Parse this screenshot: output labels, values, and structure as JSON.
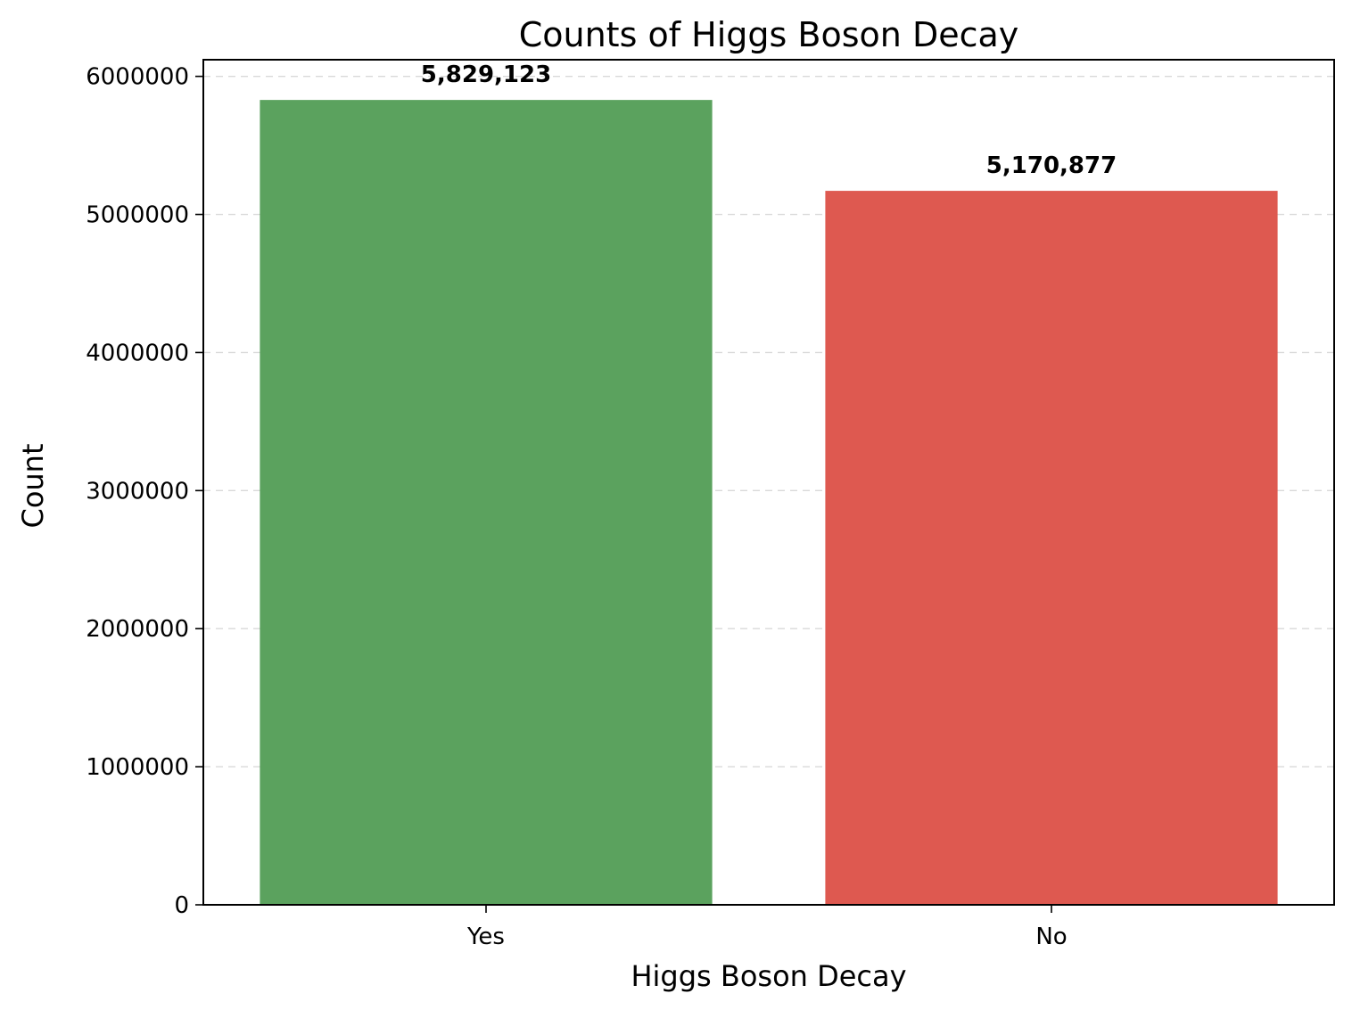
{
  "chart_data": {
    "type": "bar",
    "title": "Counts of Higgs Boson Decay",
    "xlabel": "Higgs Boson Decay",
    "ylabel": "Count",
    "categories": [
      "Yes",
      "No"
    ],
    "values": [
      5829123,
      5170877
    ],
    "data_labels": [
      "5,829,123",
      "5,170,877"
    ],
    "colors": [
      "#5ba25e",
      "#de5950"
    ],
    "ylim": [
      0,
      6120456
    ],
    "yticks": [
      0,
      1000000,
      2000000,
      3000000,
      4000000,
      5000000,
      6000000
    ],
    "ytick_labels": [
      "0",
      "1000000",
      "2000000",
      "3000000",
      "4000000",
      "5000000",
      "6000000"
    ],
    "grid": true,
    "grid_axis": "y"
  }
}
